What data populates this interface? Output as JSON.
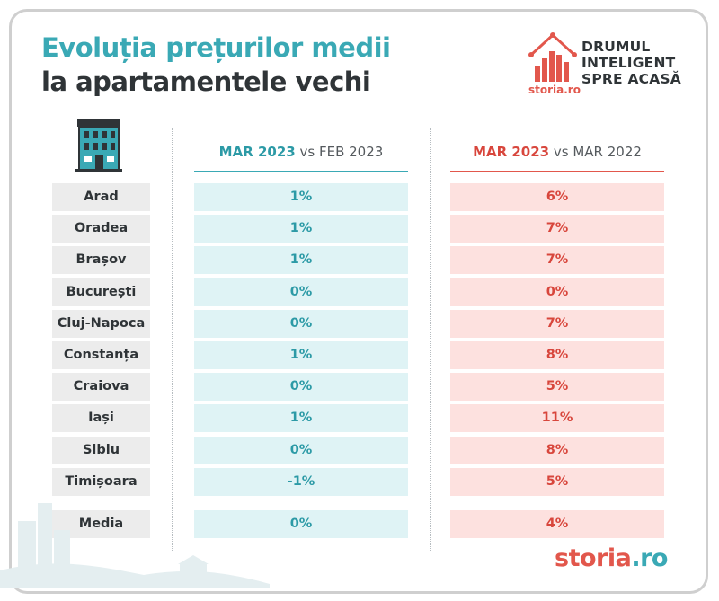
{
  "title": {
    "line1": "Evoluția prețurilor medii",
    "line2": "la apartamentele vechi"
  },
  "brand": {
    "tagline": "DRUMUL\nINTELIGENT\nSPRE ACASĂ",
    "logo_small": "storia.ro",
    "footer_logo_main": "storia",
    "footer_logo_suffix": ".ro"
  },
  "columns": [
    {
      "bold": "MAR 2023",
      "rest": " vs FEB 2023"
    },
    {
      "bold": "MAR 2023",
      "rest": " vs MAR 2022"
    }
  ],
  "rows": [
    {
      "city": "Arad",
      "mom": "1%",
      "yoy": "6%"
    },
    {
      "city": "Oradea",
      "mom": "1%",
      "yoy": "7%"
    },
    {
      "city": "Brașov",
      "mom": "1%",
      "yoy": "7%"
    },
    {
      "city": "București",
      "mom": "0%",
      "yoy": "0%"
    },
    {
      "city": "Cluj-Napoca",
      "mom": "0%",
      "yoy": "7%"
    },
    {
      "city": "Constanța",
      "mom": "1%",
      "yoy": "8%"
    },
    {
      "city": "Craiova",
      "mom": "0%",
      "yoy": "5%"
    },
    {
      "city": "Iași",
      "mom": "1%",
      "yoy": "11%"
    },
    {
      "city": "Sibiu",
      "mom": "0%",
      "yoy": "8%"
    },
    {
      "city": "Timișoara",
      "mom": "-1%",
      "yoy": "5%"
    }
  ],
  "summary": {
    "city": "Media",
    "mom": "0%",
    "yoy": "4%"
  },
  "colors": {
    "teal": "#3aa9b5",
    "red": "#e2574c",
    "dark": "#2f3437"
  }
}
